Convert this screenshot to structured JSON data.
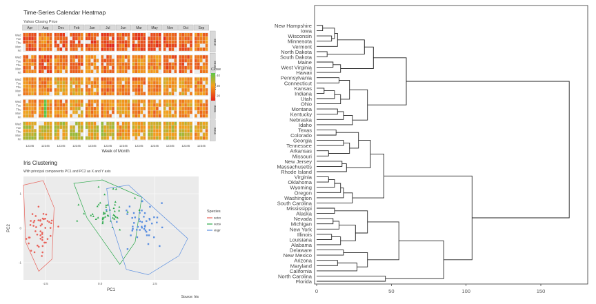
{
  "heatmap": {
    "title": "Time-Series Calendar Heatmap",
    "subtitle": "Yahoo Closing Price",
    "months": [
      "Apr",
      "Aug",
      "Dec",
      "Feb",
      "Jan",
      "Jul",
      "Jun",
      "Mar",
      "May",
      "Nov",
      "Oct",
      "Sep"
    ],
    "years": [
      "2012",
      "2013",
      "2014",
      "2015",
      "2016"
    ],
    "weekdays": [
      "Wed",
      "Tue",
      "Thu",
      "Mon",
      "Fri"
    ],
    "week_ticks": "12345",
    "xlabel": "Week of Month",
    "legend": {
      "title": "Close",
      "ticks": [
        "40",
        "30",
        "20"
      ],
      "range": [
        15,
        42
      ]
    },
    "colors": {
      "low": "#e2231a",
      "mid": "#f4a21c",
      "high": "#5bc84a"
    }
  },
  "iris": {
    "title": "Iris Clustering",
    "subtitle": "With principal components PC1 and PC2 as X and Y axis",
    "xlabel": "PC1",
    "ylabel": "PC2",
    "caption": "Source: Iris",
    "xticks": [
      "-2.5",
      "0.0",
      "2.5"
    ],
    "yticks": [
      "1",
      "0",
      "-1"
    ],
    "legend": {
      "title": "Species",
      "items": [
        {
          "label": "setosa",
          "color": "#e8625a"
        },
        {
          "label": "versicolor",
          "color": "#2aa84a"
        },
        {
          "label": "virginica",
          "color": "#5b8fe0"
        }
      ]
    }
  },
  "chart_data": [
    {
      "type": "heatmap",
      "title": "Time-Series Calendar Heatmap",
      "subtitle": "Yahoo Closing Price",
      "x_facets": [
        "Apr",
        "Aug",
        "Dec",
        "Feb",
        "Jan",
        "Jul",
        "Jun",
        "Mar",
        "May",
        "Nov",
        "Oct",
        "Sep"
      ],
      "y_facets": [
        "2012",
        "2013",
        "2014",
        "2015",
        "2016"
      ],
      "xlabel": "Week of Month",
      "value_name": "Close",
      "value_range": [
        15,
        42
      ]
    },
    {
      "type": "scatter",
      "title": "Iris Clustering",
      "subtitle": "With principal components PC1 and PC2 as X and Y axis",
      "xlabel": "PC1",
      "ylabel": "PC2",
      "xlim": [
        -3.5,
        4.5
      ],
      "ylim": [
        -1.5,
        1.5
      ],
      "series": [
        {
          "name": "setosa",
          "centroid": [
            -2.7,
            0.0
          ],
          "n": 50
        },
        {
          "name": "versicolor",
          "centroid": [
            0.3,
            0.5
          ],
          "n": 50
        },
        {
          "name": "virginica",
          "centroid": [
            1.9,
            0.1
          ],
          "n": 50
        }
      ]
    },
    {
      "type": "dendrogram",
      "xlim": [
        0,
        180
      ],
      "xticks": [
        "0",
        "50",
        "100",
        "150"
      ],
      "leaves": [
        "New Hampshire",
        "Iowa",
        "Wisconsin",
        "Minnesota",
        "Vermont",
        "North Dakota",
        "South Dakota",
        "Maine",
        "West Virginia",
        "Hawaii",
        "Pennsylvania",
        "Connecticut",
        "Kansas",
        "Indiana",
        "Utah",
        "Ohio",
        "Montana",
        "Kentucky",
        "Nebraska",
        "Idaho",
        "Texas",
        "Colorado",
        "Georgia",
        "Tennessee",
        "Arkansas",
        "Missouri",
        "New Jersey",
        "Massachusetts",
        "Rhode Island",
        "Virginia",
        "Oklahoma",
        "Wyoming",
        "Oregon",
        "Washington",
        "South Carolina",
        "Mississippi",
        "Alaska",
        "Nevada",
        "Michigan",
        "New York",
        "Illinois",
        "Louisiana",
        "Alabama",
        "Delaware",
        "New Mexico",
        "Arizona",
        "Maryland",
        "California",
        "North Carolina",
        "Florida"
      ],
      "merges": [
        [
          0,
          1,
          4
        ],
        [
          2,
          3,
          10
        ],
        [
          50,
          51,
          12
        ],
        [
          4,
          52,
          14
        ],
        [
          5,
          6,
          7
        ],
        [
          53,
          54,
          32
        ],
        [
          7,
          8,
          11
        ],
        [
          56,
          9,
          16
        ],
        [
          55,
          57,
          38
        ],
        [
          10,
          11,
          15
        ],
        [
          12,
          13,
          5
        ],
        [
          60,
          14,
          12
        ],
        [
          61,
          15,
          16
        ],
        [
          59,
          62,
          22
        ],
        [
          16,
          17,
          14
        ],
        [
          64,
          18,
          18
        ],
        [
          65,
          19,
          24
        ],
        [
          63,
          66,
          34
        ],
        [
          58,
          67,
          60
        ],
        [
          20,
          21,
          13
        ],
        [
          22,
          23,
          18
        ],
        [
          24,
          25,
          8
        ],
        [
          70,
          71,
          22
        ],
        [
          69,
          72,
          28
        ],
        [
          26,
          27,
          17
        ],
        [
          74,
          28,
          20
        ],
        [
          73,
          75,
          36
        ],
        [
          29,
          30,
          8
        ],
        [
          77,
          31,
          12
        ],
        [
          78,
          32,
          16
        ],
        [
          79,
          33,
          18
        ],
        [
          80,
          34,
          24
        ],
        [
          76,
          81,
          45
        ],
        [
          35,
          36,
          12
        ],
        [
          37,
          38,
          11
        ],
        [
          84,
          39,
          15
        ],
        [
          40,
          41,
          10
        ],
        [
          86,
          42,
          16
        ],
        [
          85,
          87,
          26
        ],
        [
          83,
          88,
          34
        ],
        [
          43,
          44,
          18
        ],
        [
          45,
          46,
          14
        ],
        [
          91,
          47,
          27
        ],
        [
          90,
          92,
          34
        ],
        [
          89,
          93,
          55
        ],
        [
          48,
          49,
          46
        ],
        [
          94,
          95,
          85
        ],
        [
          82,
          96,
          104
        ],
        [
          68,
          97,
          169
        ]
      ]
    }
  ]
}
